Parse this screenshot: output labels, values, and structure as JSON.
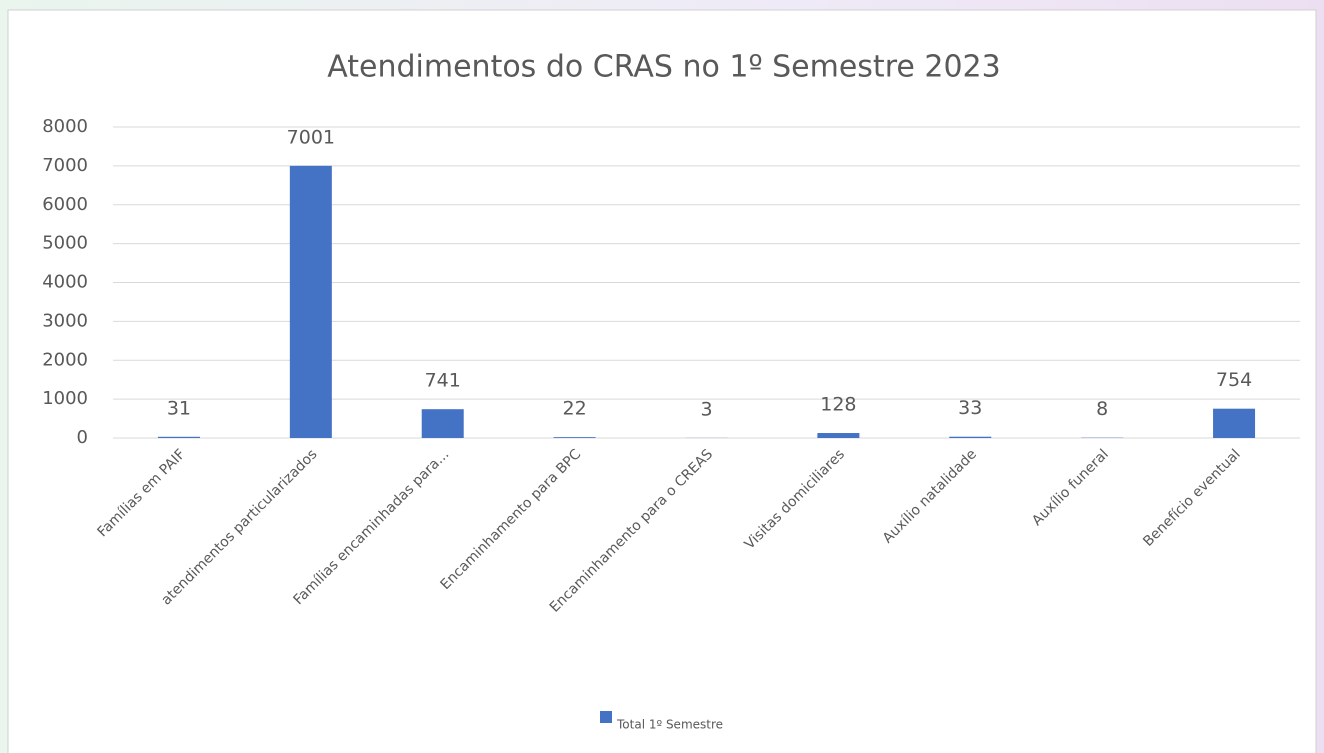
{
  "chart_data": {
    "type": "bar",
    "title": "Atendimentos do CRAS no 1º Semestre 2023",
    "categories": [
      "Famílias em PAIF",
      "atendimentos particularizados",
      "Famílias encaminhadas para...",
      "Encaminhamento para BPC",
      "Encaminhamento para o CREAS",
      "Visitas domiciliares",
      "Auxílio natalidade",
      "Auxílio funeral",
      "Benefício eventual"
    ],
    "series": [
      {
        "name": "Total 1º Semestre",
        "color": "#4472c4",
        "values": [
          31,
          7001,
          741,
          22,
          3,
          128,
          33,
          8,
          754
        ]
      }
    ],
    "ylim": [
      0,
      8000
    ],
    "yticks": [
      0,
      1000,
      2000,
      3000,
      4000,
      5000,
      6000,
      7000,
      8000
    ],
    "grid": true,
    "data_labels": true,
    "legend": "bottom"
  }
}
